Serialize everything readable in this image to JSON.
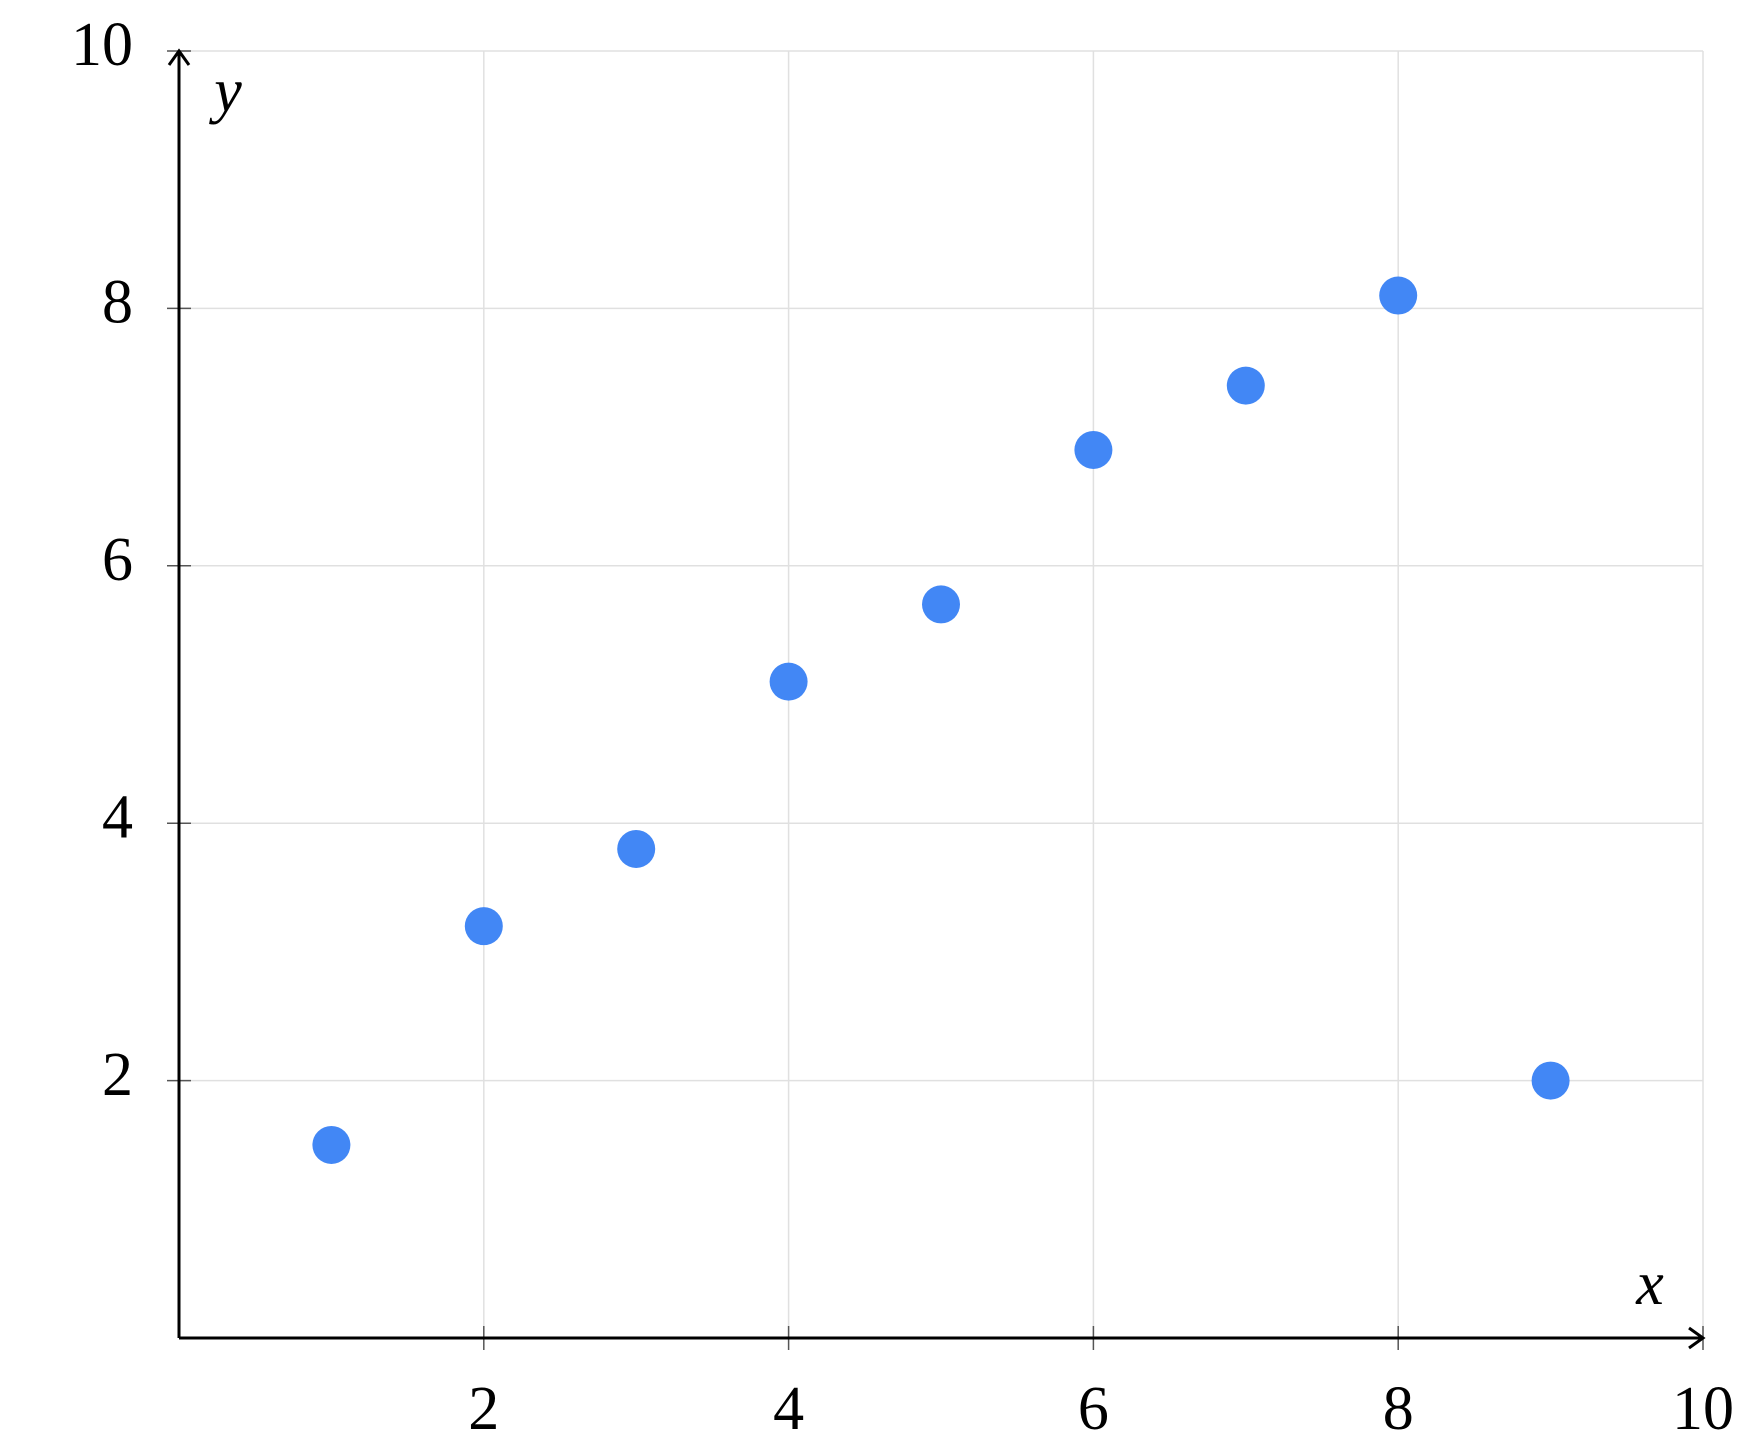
{
  "chart_data": {
    "type": "scatter",
    "x_label": "x",
    "y_label": "y",
    "x": [
      1,
      2,
      3,
      4,
      5,
      6,
      7,
      8,
      9
    ],
    "series": [
      {
        "color": "#4287f5",
        "values": [
          1.5,
          3.2,
          3.8,
          5.1,
          5.7,
          6.9,
          7.4,
          8.1,
          2.0
        ]
      }
    ],
    "xlim": [
      0,
      10
    ],
    "ylim": [
      0,
      10
    ],
    "xticks": [
      2,
      4,
      6,
      8,
      10
    ],
    "yticks": [
      2,
      4,
      6,
      8,
      10
    ],
    "grid": true
  }
}
